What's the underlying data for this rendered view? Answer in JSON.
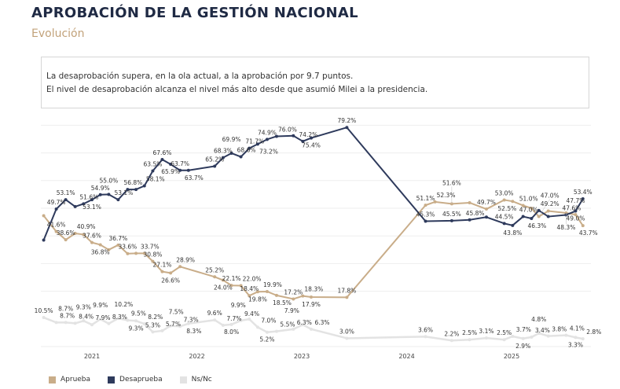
{
  "header": {
    "title": "APROBACIÓN DE LA GESTIÓN NACIONAL",
    "subtitle": "Evolución"
  },
  "note": {
    "line1": "La desaprobación supera, en la ola actual, a la aprobación por 9.7 puntos.",
    "line2": "El nivel de desaprobación alcanza el nivel más alto desde que asumió Milei a la presidencia."
  },
  "chart_data": {
    "type": "line",
    "x_ticks": [
      "2021",
      "2022",
      "2023",
      "2024",
      "2025"
    ],
    "xlim": [
      2020.52,
      2025.76
    ],
    "ylim": [
      0,
      85
    ],
    "grid": true,
    "legend_placement": "bottom-left",
    "value_suffix": "%",
    "series": [
      {
        "name": "Aprueba",
        "color": "#c9ad89",
        "points": [
          {
            "x": 2020.54,
            "y": 47.3,
            "unlabeled": true
          },
          {
            "x": 2020.66,
            "y": 41.6
          },
          {
            "x": 2020.75,
            "y": 38.6
          },
          {
            "x": 2020.84,
            "y": 40.9
          },
          {
            "x": 2020.92,
            "y": 40.5,
            "unlabeled": true
          },
          {
            "x": 2021.0,
            "y": 37.6
          },
          {
            "x": 2021.08,
            "y": 36.8
          },
          {
            "x": 2021.16,
            "y": 35.0,
            "unlabeled": true
          },
          {
            "x": 2021.25,
            "y": 36.7
          },
          {
            "x": 2021.34,
            "y": 33.6
          },
          {
            "x": 2021.42,
            "y": 33.7,
            "unlabeled": true
          },
          {
            "x": 2021.5,
            "y": 33.7
          },
          {
            "x": 2021.58,
            "y": 30.8
          },
          {
            "x": 2021.67,
            "y": 27.1
          },
          {
            "x": 2021.75,
            "y": 26.6
          },
          {
            "x": 2021.84,
            "y": 28.9
          },
          {
            "x": 2022.17,
            "y": 25.2
          },
          {
            "x": 2022.25,
            "y": 24.0
          },
          {
            "x": 2022.33,
            "y": 22.1
          },
          {
            "x": 2022.42,
            "y": 22.0
          },
          {
            "x": 2022.5,
            "y": 18.4
          },
          {
            "x": 2022.58,
            "y": 19.8
          },
          {
            "x": 2022.67,
            "y": 19.9
          },
          {
            "x": 2022.76,
            "y": 18.5
          },
          {
            "x": 2022.92,
            "y": 17.2
          },
          {
            "x": 2023.01,
            "y": 18.3
          },
          {
            "x": 2023.09,
            "y": 17.9
          },
          {
            "x": 2023.43,
            "y": 17.8
          },
          {
            "x": 2024.18,
            "y": 51.1
          },
          {
            "x": 2024.27,
            "y": 52.3
          },
          {
            "x": 2024.43,
            "y": 51.6
          },
          {
            "x": 2024.6,
            "y": 52.0,
            "unlabeled": true
          },
          {
            "x": 2024.76,
            "y": 49.7
          },
          {
            "x": 2024.93,
            "y": 53.0
          },
          {
            "x": 2025.01,
            "y": 52.5
          },
          {
            "x": 2025.11,
            "y": 51.0
          },
          {
            "x": 2025.19,
            "y": 50.0,
            "unlabeled": true
          },
          {
            "x": 2025.26,
            "y": 47.0
          },
          {
            "x": 2025.35,
            "y": 49.0,
            "unlabeled": true
          },
          {
            "x": 2025.52,
            "y": 48.3
          },
          {
            "x": 2025.61,
            "y": 47.7
          },
          {
            "x": 2025.68,
            "y": 43.7
          }
        ]
      },
      {
        "name": "Desaprueba",
        "color": "#2e3a5c",
        "points": [
          {
            "x": 2020.54,
            "y": 38.5,
            "unlabeled": true
          },
          {
            "x": 2020.66,
            "y": 49.7
          },
          {
            "x": 2020.75,
            "y": 53.1
          },
          {
            "x": 2020.84,
            "y": 50.6,
            "unlabeled": true
          },
          {
            "x": 2020.92,
            "y": 51.6
          },
          {
            "x": 2021.0,
            "y": 53.1
          },
          {
            "x": 2021.08,
            "y": 54.9
          },
          {
            "x": 2021.16,
            "y": 55.0
          },
          {
            "x": 2021.25,
            "y": 53.1
          },
          {
            "x": 2021.34,
            "y": 56.8
          },
          {
            "x": 2021.42,
            "y": 56.8,
            "unlabeled": true
          },
          {
            "x": 2021.5,
            "y": 58.1
          },
          {
            "x": 2021.58,
            "y": 63.5
          },
          {
            "x": 2021.67,
            "y": 67.6
          },
          {
            "x": 2021.75,
            "y": 65.9
          },
          {
            "x": 2021.84,
            "y": 63.7
          },
          {
            "x": 2021.92,
            "y": 63.7
          },
          {
            "x": 2022.17,
            "y": 65.2
          },
          {
            "x": 2022.25,
            "y": 68.3
          },
          {
            "x": 2022.33,
            "y": 69.9
          },
          {
            "x": 2022.42,
            "y": 68.6
          },
          {
            "x": 2022.5,
            "y": 71.7
          },
          {
            "x": 2022.58,
            "y": 73.2
          },
          {
            "x": 2022.67,
            "y": 74.9
          },
          {
            "x": 2022.76,
            "y": 76.0
          },
          {
            "x": 2022.92,
            "y": 76.2,
            "unlabeled": true
          },
          {
            "x": 2023.01,
            "y": 74.2
          },
          {
            "x": 2023.09,
            "y": 75.4
          },
          {
            "x": 2023.43,
            "y": 79.2
          },
          {
            "x": 2024.18,
            "y": 45.3
          },
          {
            "x": 2024.43,
            "y": 45.5
          },
          {
            "x": 2024.6,
            "y": 45.8
          },
          {
            "x": 2024.76,
            "y": 46.8,
            "unlabeled": true
          },
          {
            "x": 2024.93,
            "y": 44.5
          },
          {
            "x": 2025.01,
            "y": 43.8
          },
          {
            "x": 2025.11,
            "y": 47.0
          },
          {
            "x": 2025.19,
            "y": 46.3
          },
          {
            "x": 2025.26,
            "y": 49.2
          },
          {
            "x": 2025.35,
            "y": 47.0,
            "unlabeled": true
          },
          {
            "x": 2025.52,
            "y": 47.6
          },
          {
            "x": 2025.61,
            "y": 49.0
          },
          {
            "x": 2025.68,
            "y": 53.4
          }
        ]
      },
      {
        "name": "Ns/Nc",
        "color": "#e3e3e3",
        "points": [
          {
            "x": 2020.54,
            "y": 10.5
          },
          {
            "x": 2020.66,
            "y": 8.7
          },
          {
            "x": 2020.75,
            "y": 8.7
          },
          {
            "x": 2020.84,
            "y": 8.4
          },
          {
            "x": 2020.92,
            "y": 9.3
          },
          {
            "x": 2021.0,
            "y": 7.9
          },
          {
            "x": 2021.08,
            "y": 9.9
          },
          {
            "x": 2021.16,
            "y": 8.3
          },
          {
            "x": 2021.25,
            "y": 10.2
          },
          {
            "x": 2021.34,
            "y": 9.5
          },
          {
            "x": 2021.42,
            "y": 9.3
          },
          {
            "x": 2021.5,
            "y": 8.2
          },
          {
            "x": 2021.58,
            "y": 5.3
          },
          {
            "x": 2021.67,
            "y": 5.7
          },
          {
            "x": 2021.75,
            "y": 7.5
          },
          {
            "x": 2021.84,
            "y": 7.3
          },
          {
            "x": 2021.92,
            "y": 8.3
          },
          {
            "x": 2022.17,
            "y": 9.6
          },
          {
            "x": 2022.25,
            "y": 7.7
          },
          {
            "x": 2022.33,
            "y": 8.0
          },
          {
            "x": 2022.42,
            "y": 9.4
          },
          {
            "x": 2022.5,
            "y": 9.9
          },
          {
            "x": 2022.58,
            "y": 7.0
          },
          {
            "x": 2022.67,
            "y": 5.2
          },
          {
            "x": 2022.76,
            "y": 5.5
          },
          {
            "x": 2022.92,
            "y": 6.3
          },
          {
            "x": 2023.01,
            "y": 7.9
          },
          {
            "x": 2023.09,
            "y": 6.3
          },
          {
            "x": 2023.43,
            "y": 3.0
          },
          {
            "x": 2024.18,
            "y": 3.6
          },
          {
            "x": 2024.43,
            "y": 2.2
          },
          {
            "x": 2024.6,
            "y": 2.5
          },
          {
            "x": 2024.76,
            "y": 3.1
          },
          {
            "x": 2024.93,
            "y": 2.5
          },
          {
            "x": 2025.01,
            "y": 3.7
          },
          {
            "x": 2025.11,
            "y": 2.9
          },
          {
            "x": 2025.19,
            "y": 3.4
          },
          {
            "x": 2025.26,
            "y": 4.8
          },
          {
            "x": 2025.35,
            "y": 3.8
          },
          {
            "x": 2025.52,
            "y": 4.1
          },
          {
            "x": 2025.61,
            "y": 3.3
          },
          {
            "x": 2025.68,
            "y": 2.8
          }
        ]
      }
    ]
  }
}
